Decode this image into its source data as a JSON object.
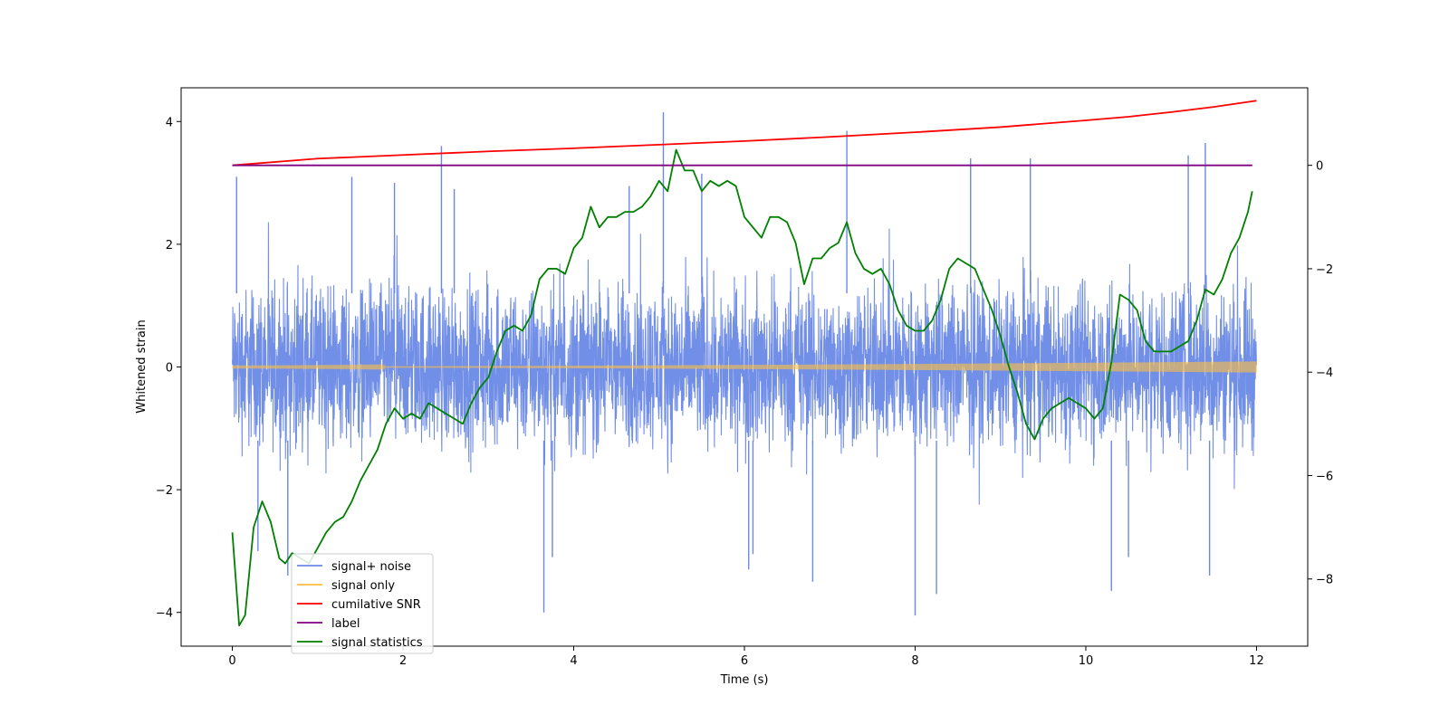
{
  "chart_data": {
    "type": "line",
    "title": "",
    "xlabel": "Time (s)",
    "ylabel": "Whitened strain",
    "xlim": [
      -0.6,
      12.6
    ],
    "ylim": [
      -4.55,
      4.55
    ],
    "y2lim": [
      -9.3,
      1.5
    ],
    "grid": false,
    "legend_position": "lower-left",
    "x_ticks": [
      0,
      2,
      4,
      6,
      8,
      10,
      12
    ],
    "y_ticks": [
      -4,
      -2,
      0,
      2,
      4
    ],
    "y2_ticks": [
      -8,
      -6,
      -4,
      -2,
      0
    ],
    "x_tick_labels": [
      "0",
      "2",
      "4",
      "6",
      "8",
      "10",
      "12"
    ],
    "y_tick_labels": [
      "−4",
      "−2",
      "0",
      "2",
      "4"
    ],
    "y2_tick_labels": [
      "−8",
      "−6",
      "−4",
      "−2",
      "0"
    ],
    "series": [
      {
        "name": "signal+ noise",
        "color": "#6a89e6",
        "axis": "left",
        "description_values": {
          "x_range": [
            0,
            12
          ],
          "band_low": -1.9,
          "band_high": 1.9,
          "spikes": [
            [
              0.05,
              3.1
            ],
            [
              0.3,
              -3.0
            ],
            [
              0.65,
              -3.4
            ],
            [
              1.4,
              3.1
            ],
            [
              2.45,
              3.6
            ],
            [
              3.65,
              -4.0
            ],
            [
              3.75,
              -3.1
            ],
            [
              5.05,
              4.15
            ],
            [
              6.05,
              -3.3
            ],
            [
              6.8,
              -3.5
            ],
            [
              7.2,
              3.85
            ],
            [
              8.0,
              -4.05
            ],
            [
              8.25,
              -3.7
            ],
            [
              8.65,
              3.4
            ],
            [
              9.35,
              3.4
            ],
            [
              10.3,
              -3.65
            ],
            [
              10.5,
              -3.1
            ],
            [
              11.2,
              3.45
            ],
            [
              11.4,
              3.65
            ],
            [
              11.45,
              -3.4
            ],
            [
              4.65,
              2.95
            ],
            [
              5.5,
              3.15
            ],
            [
              6.1,
              -3.05
            ],
            [
              1.9,
              3.0
            ],
            [
              2.6,
              2.9
            ]
          ]
        }
      },
      {
        "name": "signal only",
        "color": "#ffbf40",
        "axis": "left",
        "description_values": {
          "x_range": [
            0,
            12
          ],
          "amplitude_start": 0.005,
          "amplitude_end": 0.09
        }
      },
      {
        "name": "cumilative SNR",
        "color": "#ff0000",
        "axis": "right",
        "x": [
          0,
          1,
          2,
          3,
          4,
          5,
          6,
          7,
          8,
          9,
          10,
          10.5,
          11,
          11.5,
          12
        ],
        "values": [
          0.0,
          0.13,
          0.2,
          0.27,
          0.33,
          0.4,
          0.47,
          0.55,
          0.64,
          0.74,
          0.87,
          0.94,
          1.03,
          1.13,
          1.25
        ]
      },
      {
        "name": "label",
        "color": "#800080",
        "axis": "right",
        "x": [
          0,
          11.95
        ],
        "values": [
          0,
          0
        ]
      },
      {
        "name": "signal statistics",
        "color": "#008000",
        "axis": "right",
        "x": [
          0,
          0.08,
          0.15,
          0.25,
          0.35,
          0.45,
          0.55,
          0.62,
          0.7,
          0.8,
          0.9,
          1.0,
          1.1,
          1.2,
          1.3,
          1.4,
          1.5,
          1.6,
          1.7,
          1.8,
          1.9,
          2.0,
          2.1,
          2.2,
          2.3,
          2.4,
          2.5,
          2.6,
          2.7,
          2.8,
          2.9,
          3.0,
          3.1,
          3.2,
          3.3,
          3.4,
          3.5,
          3.6,
          3.7,
          3.8,
          3.9,
          4.0,
          4.1,
          4.2,
          4.3,
          4.4,
          4.5,
          4.6,
          4.7,
          4.8,
          4.9,
          5.0,
          5.1,
          5.2,
          5.3,
          5.4,
          5.5,
          5.6,
          5.7,
          5.8,
          5.9,
          6.0,
          6.1,
          6.2,
          6.3,
          6.4,
          6.5,
          6.6,
          6.7,
          6.8,
          6.9,
          7.0,
          7.1,
          7.2,
          7.3,
          7.4,
          7.5,
          7.6,
          7.7,
          7.8,
          7.9,
          8.0,
          8.1,
          8.2,
          8.3,
          8.4,
          8.5,
          8.6,
          8.7,
          8.8,
          8.9,
          9.0,
          9.1,
          9.2,
          9.3,
          9.4,
          9.5,
          9.6,
          9.7,
          9.8,
          9.9,
          10.0,
          10.1,
          10.2,
          10.3,
          10.4,
          10.5,
          10.6,
          10.7,
          10.8,
          10.9,
          11.0,
          11.1,
          11.2,
          11.3,
          11.4,
          11.5,
          11.6,
          11.7,
          11.8,
          11.9,
          11.95
        ],
        "values": [
          -7.1,
          -8.9,
          -8.7,
          -7.0,
          -6.5,
          -6.9,
          -7.6,
          -7.7,
          -7.5,
          -7.6,
          -7.7,
          -7.4,
          -7.1,
          -6.9,
          -6.8,
          -6.5,
          -6.1,
          -5.8,
          -5.5,
          -5.0,
          -4.7,
          -4.9,
          -4.8,
          -4.9,
          -4.6,
          -4.7,
          -4.8,
          -4.9,
          -5.0,
          -4.6,
          -4.3,
          -4.1,
          -3.6,
          -3.2,
          -3.1,
          -3.2,
          -2.9,
          -2.2,
          -2.0,
          -2.0,
          -2.1,
          -1.6,
          -1.4,
          -0.8,
          -1.2,
          -1.0,
          -1.0,
          -0.9,
          -0.9,
          -0.8,
          -0.6,
          -0.3,
          -0.5,
          0.3,
          -0.1,
          -0.1,
          -0.5,
          -0.3,
          -0.4,
          -0.3,
          -0.4,
          -1.0,
          -1.2,
          -1.4,
          -1.0,
          -1.0,
          -1.1,
          -1.5,
          -2.3,
          -1.8,
          -1.8,
          -1.6,
          -1.5,
          -1.1,
          -1.7,
          -2.0,
          -2.1,
          -2.0,
          -2.3,
          -2.8,
          -3.1,
          -3.2,
          -3.2,
          -3.0,
          -2.6,
          -2.0,
          -1.8,
          -1.9,
          -2.0,
          -2.4,
          -2.8,
          -3.3,
          -3.9,
          -4.4,
          -5.0,
          -5.3,
          -4.9,
          -4.7,
          -4.6,
          -4.5,
          -4.6,
          -4.7,
          -4.9,
          -4.7,
          -3.8,
          -2.5,
          -2.6,
          -2.8,
          -3.4,
          -3.6,
          -3.6,
          -3.6,
          -3.5,
          -3.4,
          -3.0,
          -2.4,
          -2.5,
          -2.2,
          -1.7,
          -1.4,
          -0.9,
          -0.5
        ]
      }
    ]
  }
}
